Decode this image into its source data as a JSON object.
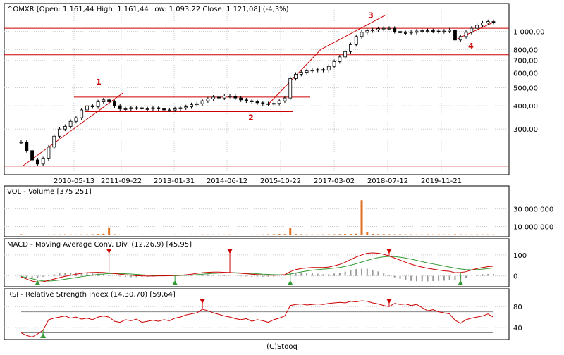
{
  "footer": "(C)Stooq",
  "colors": {
    "price_line": "#cc0000",
    "volume_bar": "#e07020",
    "macd_line": "#cc0000",
    "signal_line": "#339933",
    "histogram": "#999999",
    "rsi_line": "#cc0000",
    "marker_up": "#339933",
    "marker_down": "#cc0000",
    "candle_up": "#ffffff",
    "candle_down": "#000000",
    "grid": "#cccccc",
    "panel_border": "#000000"
  },
  "chart_data": [
    {
      "type": "candlestick",
      "title": "^OMXR [Open: 1 161,44 High: 1 161,44 Low: 1 093,22 Close: 1 121,08] (-4,3%)",
      "scale": "log",
      "ylim": [
        180,
        1250
      ],
      "y_ticks": [
        {
          "value": 300,
          "label": "300,00"
        },
        {
          "value": 400,
          "label": "400,00"
        },
        {
          "value": 500,
          "label": "500,00"
        },
        {
          "value": 600,
          "label": "600,00"
        },
        {
          "value": 700,
          "label": "700,00"
        },
        {
          "value": 800,
          "label": "800,00"
        },
        {
          "value": 1000,
          "label": "1 000,00"
        }
      ],
      "x_tick_labels": [
        "2010-05-13",
        "2011-09-22",
        "2013-01-31",
        "2014-06-12",
        "2015-10-22",
        "2017-03-02",
        "2018-07-12",
        "2019-11-21"
      ],
      "grid": true,
      "close_values": [
        255,
        230,
        205,
        195,
        208,
        240,
        275,
        300,
        310,
        330,
        345,
        380,
        400,
        395,
        420,
        430,
        420,
        400,
        385,
        385,
        390,
        390,
        385,
        385,
        390,
        385,
        380,
        380,
        385,
        390,
        395,
        405,
        410,
        425,
        435,
        445,
        440,
        450,
        450,
        440,
        430,
        425,
        420,
        415,
        410,
        408,
        412,
        425,
        440,
        560,
        590,
        605,
        615,
        620,
        625,
        620,
        650,
        690,
        730,
        780,
        850,
        940,
        990,
        1010,
        1020,
        1035,
        1040,
        1040,
        1000,
        985,
        985,
        990,
        1005,
        1010,
        1010,
        1005,
        1000,
        1005,
        1020,
        900,
        940,
        990,
        1040,
        1080,
        1110,
        1130,
        1121.08
      ],
      "horizontal_levels": [
        1040,
        750,
        372,
        190,
        445
      ],
      "annotations": [
        "1",
        "2",
        "3",
        "4"
      ]
    },
    {
      "type": "bar",
      "title": "VOL - Volume [375 251]",
      "ylim": [
        0,
        45000000
      ],
      "y_ticks": [
        {
          "value": 10000000,
          "label": "10 000 000"
        },
        {
          "value": 30000000,
          "label": "30 000 000"
        }
      ],
      "values": [
        1200000,
        900000,
        800000,
        700000,
        800000,
        900000,
        1000000,
        1000000,
        1100000,
        1000000,
        900000,
        1000000,
        1000000,
        1200000,
        1500000,
        1800000,
        9000000,
        1200000,
        900000,
        800000,
        700000,
        800000,
        900000,
        800000,
        700000,
        700000,
        800000,
        800000,
        900000,
        800000,
        800000,
        900000,
        900000,
        1000000,
        1000000,
        900000,
        900000,
        900000,
        1000000,
        900000,
        800000,
        800000,
        900000,
        900000,
        1000000,
        1200000,
        1300000,
        1500000,
        1400000,
        8000000,
        1500000,
        1200000,
        1100000,
        1000000,
        1000000,
        1100000,
        1100000,
        1200000,
        1300000,
        1500000,
        1500000,
        1800000,
        40000000,
        3500000,
        1600000,
        1400000,
        1300000,
        1200000,
        1100000,
        1200000,
        1100000,
        1100000,
        1000000,
        1000000,
        1100000,
        1000000,
        1100000,
        1000000,
        1000000,
        1200000,
        1100000,
        1000000,
        1000000,
        1100000,
        1000000,
        1100000,
        1000000
      ]
    },
    {
      "type": "line",
      "title": "MACD - Moving Average Conv. Div. (12,26,9) [45,95]",
      "ylim": [
        -45,
        130
      ],
      "y_ticks": [
        {
          "value": 0,
          "label": "0"
        },
        {
          "value": 100,
          "label": "100"
        }
      ],
      "series": [
        {
          "name": "MACD",
          "values": [
            -5,
            -15,
            -25,
            -30,
            -28,
            -22,
            -15,
            -8,
            -2,
            3,
            8,
            12,
            15,
            16,
            17,
            16,
            14,
            11,
            8,
            5,
            3,
            1,
            0,
            -1,
            -1,
            0,
            0,
            1,
            2,
            3,
            5,
            8,
            12,
            15,
            17,
            18,
            18,
            17,
            16,
            14,
            12,
            10,
            8,
            6,
            4,
            3,
            3,
            4,
            6,
            20,
            30,
            35,
            38,
            40,
            40,
            40,
            42,
            48,
            55,
            65,
            78,
            90,
            100,
            108,
            110,
            108,
            103,
            95,
            85,
            75,
            65,
            56,
            48,
            42,
            36,
            32,
            28,
            24,
            22,
            15,
            16,
            20,
            28,
            35,
            40,
            44,
            45.95
          ]
        },
        {
          "name": "Signal",
          "values": [
            -3,
            -8,
            -14,
            -20,
            -24,
            -25,
            -23,
            -20,
            -16,
            -12,
            -8,
            -4,
            0,
            4,
            7,
            9,
            11,
            11,
            11,
            10,
            9,
            7,
            5,
            4,
            2,
            1,
            1,
            1,
            1,
            2,
            3,
            4,
            6,
            8,
            10,
            12,
            13,
            14,
            15,
            15,
            14,
            13,
            12,
            10,
            8,
            7,
            6,
            5,
            5,
            9,
            14,
            19,
            23,
            27,
            30,
            32,
            34,
            37,
            40,
            45,
            51,
            58,
            66,
            74,
            81,
            87,
            91,
            93,
            92,
            89,
            85,
            80,
            74,
            68,
            62,
            57,
            52,
            47,
            42,
            37,
            33,
            30,
            29,
            30,
            32,
            35,
            38
          ]
        }
      ],
      "markers_up_index": [
        3,
        28,
        49,
        80
      ],
      "markers_down_index": [
        16,
        38,
        67
      ]
    },
    {
      "type": "line",
      "title": "RSI - Relative Strength Index (14,30,70) [59,64]",
      "ylim": [
        20,
        95
      ],
      "y_ticks": [
        {
          "value": 40,
          "label": "40"
        },
        {
          "value": 80,
          "label": "80"
        }
      ],
      "reference_lines": [
        70,
        30
      ],
      "series": [
        {
          "name": "RSI",
          "values": [
            30,
            25,
            22,
            28,
            35,
            55,
            58,
            60,
            62,
            58,
            60,
            56,
            58,
            55,
            60,
            62,
            60,
            52,
            50,
            55,
            53,
            56,
            50,
            52,
            54,
            52,
            55,
            53,
            58,
            60,
            64,
            66,
            68,
            75,
            72,
            68,
            65,
            62,
            60,
            57,
            55,
            57,
            52,
            55,
            53,
            50,
            55,
            58,
            62,
            82,
            84,
            85,
            83,
            84,
            85,
            84,
            86,
            87,
            88,
            87,
            90,
            89,
            91,
            90,
            87,
            85,
            82,
            80,
            86,
            84,
            85,
            82,
            84,
            78,
            72,
            74,
            70,
            68,
            66,
            54,
            48,
            55,
            58,
            60,
            62,
            66,
            59.64
          ]
        }
      ],
      "markers_up_index": [
        4
      ],
      "markers_down_index": [
        33,
        67
      ]
    }
  ]
}
